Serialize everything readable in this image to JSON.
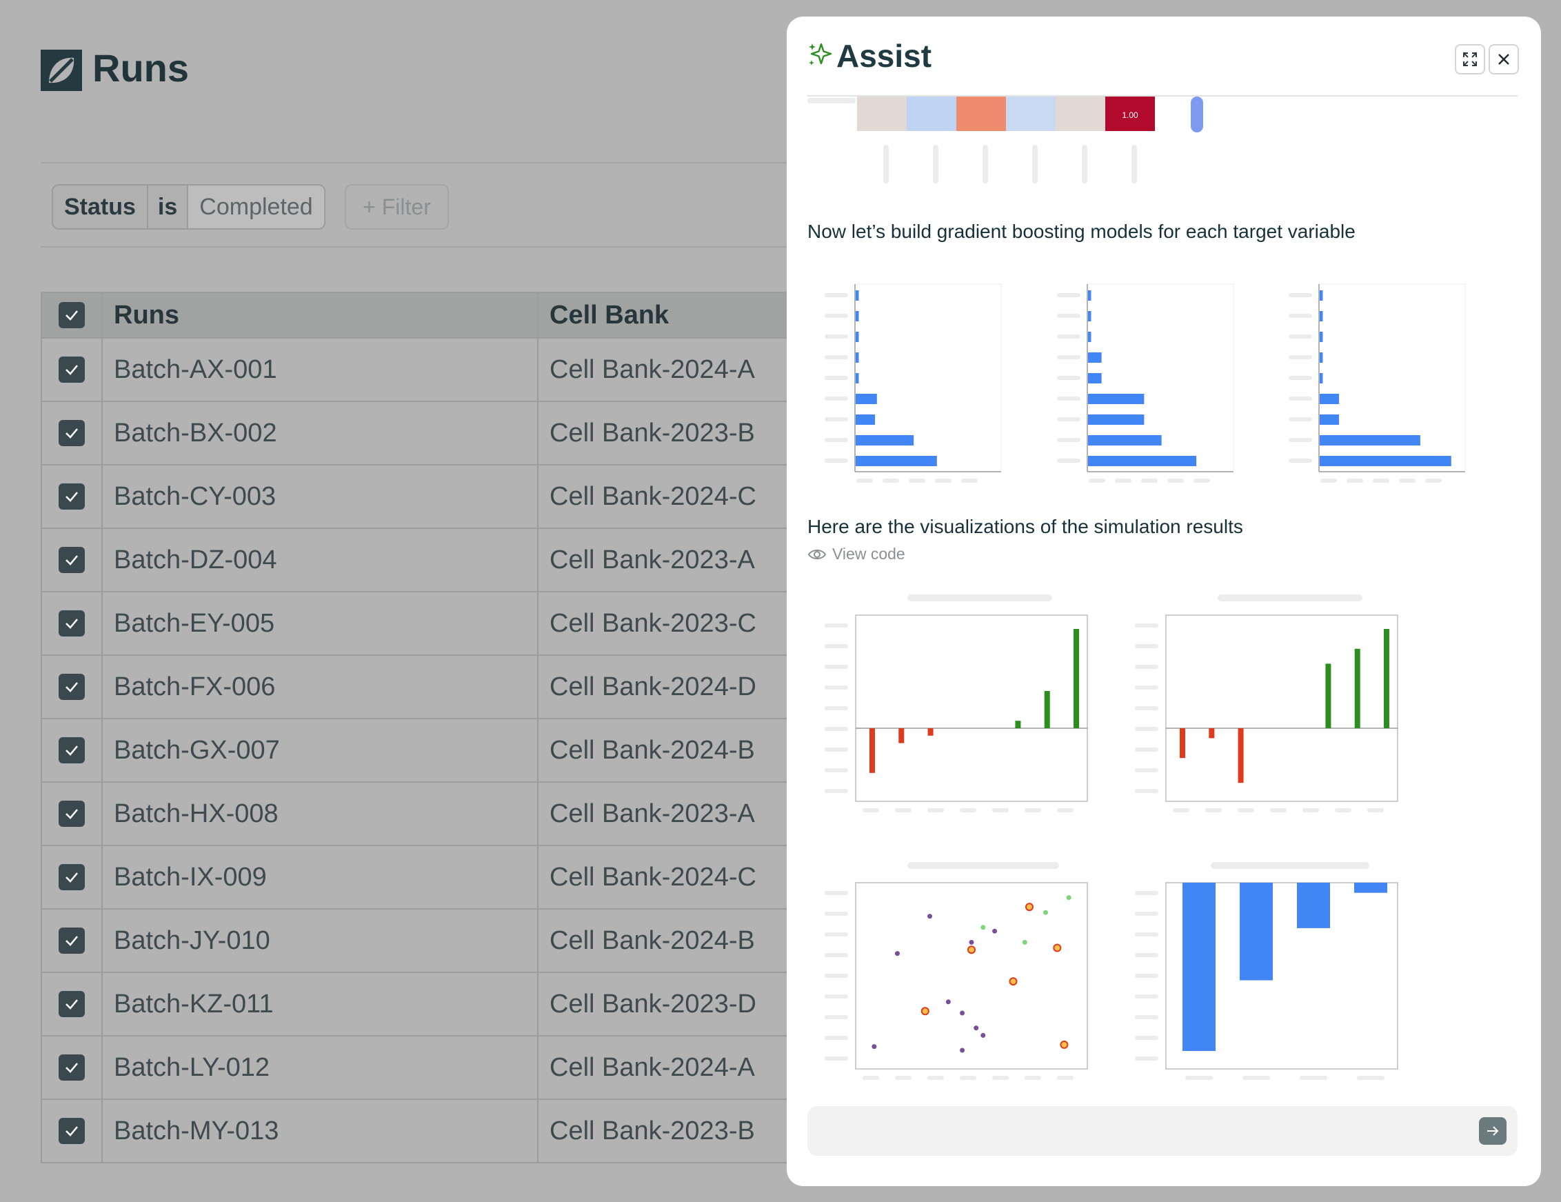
{
  "page": {
    "title": "Runs"
  },
  "filter": {
    "field": "Status",
    "operator": "is",
    "value": "Completed",
    "add_label": "+ Filter"
  },
  "table": {
    "columns": [
      "Runs",
      "Cell Bank"
    ],
    "rows": [
      [
        "Batch-AX-001",
        "Cell Bank-2024-A"
      ],
      [
        "Batch-BX-002",
        "Cell Bank-2023-B"
      ],
      [
        "Batch-CY-003",
        "Cell Bank-2024-C"
      ],
      [
        "Batch-DZ-004",
        "Cell Bank-2023-A"
      ],
      [
        "Batch-EY-005",
        "Cell Bank-2023-C"
      ],
      [
        "Batch-FX-006",
        "Cell Bank-2024-D"
      ],
      [
        "Batch-GX-007",
        "Cell Bank-2024-B"
      ],
      [
        "Batch-HX-008",
        "Cell Bank-2023-A"
      ],
      [
        "Batch-IX-009",
        "Cell Bank-2024-C"
      ],
      [
        "Batch-JY-010",
        "Cell Bank-2024-B"
      ],
      [
        "Batch-KZ-011",
        "Cell Bank-2023-D"
      ],
      [
        "Batch-LY-012",
        "Cell Bank-2024-A"
      ],
      [
        "Batch-MY-013",
        "Cell Bank-2023-B"
      ]
    ]
  },
  "assist": {
    "title": "Assist",
    "messages": {
      "gb": "Now let’s build gradient boosting models for each target variable",
      "viz": "Here are the visualizations of the simulation results"
    },
    "view_code_label": "View code",
    "input_placeholder": ""
  },
  "colors": {
    "blue": "#4285f4",
    "green": "#2a8f1e",
    "red": "#e03a1c",
    "purple": "#7a4f9a",
    "accent": "#2a8f1e"
  },
  "chart_data": [
    {
      "type": "heatmap",
      "values": [
        0.15,
        -0.25,
        0.62,
        -0.2,
        0.18,
        1.0
      ],
      "annotations": [
        "",
        "",
        "",
        "",
        "",
        "1.00"
      ]
    },
    {
      "type": "bar",
      "orientation": "horizontal",
      "values": [
        0.8,
        0.8,
        0.8,
        0.8,
        0.8,
        5.5,
        5.0,
        15.0,
        21.0
      ]
    },
    {
      "type": "bar",
      "orientation": "horizontal",
      "values": [
        0.8,
        0.8,
        0.8,
        3.5,
        3.5,
        14.5,
        14.5,
        19.0,
        28.0
      ]
    },
    {
      "type": "bar",
      "orientation": "horizontal",
      "values": [
        0.8,
        0.8,
        0.8,
        0.8,
        0.8,
        5.0,
        5.0,
        26.0,
        34.0
      ]
    },
    {
      "type": "bar",
      "values": [
        -0.9,
        -0.3,
        -0.15,
        0,
        0,
        0.15,
        0.75,
        2.0
      ]
    },
    {
      "type": "bar",
      "values": [
        -0.6,
        -0.2,
        -1.1,
        0,
        0,
        1.3,
        1.6,
        2.0
      ]
    },
    {
      "type": "scatter",
      "series": [
        {
          "color": "purple",
          "x": [
            0.08,
            0.18,
            0.32,
            0.46,
            0.52,
            0.6,
            0.4,
            0.46,
            0.55,
            0.5
          ],
          "y": [
            0.12,
            0.62,
            0.82,
            0.3,
            0.22,
            0.74,
            0.36,
            0.1,
            0.18,
            0.68
          ]
        },
        {
          "color": "green",
          "x": [
            0.55,
            0.73,
            0.82,
            0.92
          ],
          "y": [
            0.76,
            0.68,
            0.84,
            0.92
          ]
        },
        {
          "color": "orange",
          "x": [
            0.5,
            0.75,
            0.87,
            0.3,
            0.68,
            0.9
          ],
          "y": [
            0.64,
            0.87,
            0.65,
            0.31,
            0.47,
            0.13
          ]
        }
      ]
    },
    {
      "type": "bar",
      "values": [
        -1.0,
        -0.58,
        -0.27,
        -0.06
      ]
    }
  ]
}
